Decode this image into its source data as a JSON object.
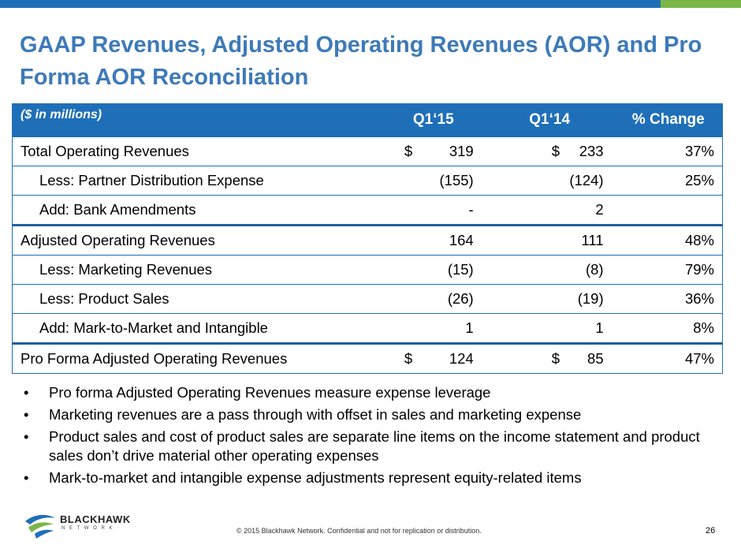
{
  "title": "GAAP Revenues, Adjusted Operating Revenues (AOR) and Pro Forma AOR Reconciliation",
  "table": {
    "header": {
      "label": "($ in millions)",
      "col1": "Q1‘15",
      "col2": "Q1‘14",
      "col3": "% Change"
    },
    "rows": [
      {
        "label": "Total Operating Revenues",
        "cur1": "$",
        "v1": "319",
        "cur2": "$",
        "v2": "233",
        "pct": "37%"
      },
      {
        "label": "Less:  Partner Distribution Expense",
        "cur1": "",
        "v1": "(155)",
        "cur2": "",
        "v2": "(124)",
        "pct": "25%"
      },
      {
        "label": "Add:  Bank Amendments",
        "cur1": "",
        "v1": "-",
        "cur2": "",
        "v2": "2",
        "pct": ""
      },
      {
        "label": "Adjusted Operating Revenues",
        "cur1": "",
        "v1": "164",
        "cur2": "",
        "v2": "111",
        "pct": "48%"
      },
      {
        "label": "Less:  Marketing Revenues",
        "cur1": "",
        "v1": "(15)",
        "cur2": "",
        "v2": "(8)",
        "pct": "79%"
      },
      {
        "label": "Less:  Product Sales",
        "cur1": "",
        "v1": "(26)",
        "cur2": "",
        "v2": "(19)",
        "pct": "36%"
      },
      {
        "label": "Add:  Mark-to-Market and Intangible",
        "cur1": "",
        "v1": "1",
        "cur2": "",
        "v2": "1",
        "pct": "8%"
      },
      {
        "label": "Pro Forma Adjusted Operating Revenues",
        "cur1": "$",
        "v1": "124",
        "cur2": "$",
        "v2": "85",
        "pct": "47%"
      }
    ]
  },
  "bullets": [
    "Pro forma Adjusted Operating Revenues measure expense leverage",
    "Marketing revenues are a pass through with offset in sales and marketing expense",
    "Product sales and cost of product sales are separate line items on the income statement and product sales don’t drive material other operating expenses",
    "Mark-to-market and intangible expense adjustments represent equity-related items"
  ],
  "bullet_char": "•",
  "logo": {
    "name": "BLACKHAWK",
    "tagline": "N E T W O R K"
  },
  "footer": "© 2015 Blackhawk Network. Confidential and not for replication or distribution.",
  "page_number": "26",
  "colors": {
    "primary_blue": "#1f6fb8",
    "accent_green": "#7ab648",
    "title_blue": "#3d7ab8"
  }
}
